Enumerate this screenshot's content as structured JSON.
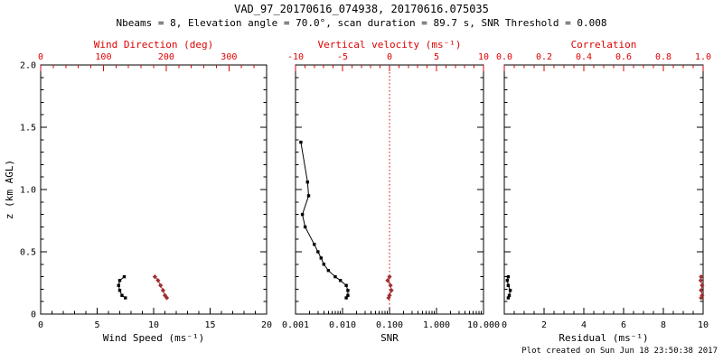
{
  "header": {
    "title": "VAD_97_20170616_074938, 20170616.075035",
    "subtitle": "Nbeams = 8, Elevation angle = 70.0°, scan duration = 89.7 s, SNR Threshold = 0.008"
  },
  "footer": {
    "created": "Plot created on Sun Jun 18 23:50:38 2017"
  },
  "colors": {
    "axis": "#000000",
    "secondary": "#dd0000",
    "marker_red": "#a03030",
    "background": "#ffffff"
  },
  "chart_data": [
    {
      "type": "scatter",
      "name": "wind-panel",
      "x_bottom": {
        "label": "Wind Speed (ms⁻¹)",
        "min": 0,
        "max": 20,
        "ticks": [
          0,
          5,
          10,
          15,
          20
        ],
        "tick_labels": [
          "0",
          "5",
          "10",
          "15",
          "20"
        ],
        "minor_divs": 5,
        "color": "#000000"
      },
      "x_top": {
        "label": "Wind Direction (deg)",
        "min": 0,
        "max": 360,
        "ticks": [
          0,
          100,
          200,
          300
        ],
        "tick_labels": [
          "0",
          "100",
          "200",
          "300"
        ],
        "minor_divs": 5,
        "color": "#dd0000"
      },
      "y": {
        "label": "z (km AGL)",
        "min": 0,
        "max": 2,
        "ticks": [
          0,
          0.5,
          1,
          1.5,
          2
        ],
        "tick_labels": [
          "0",
          "0.5",
          "1.0",
          "1.5",
          "2.0"
        ],
        "minor_divs": 5,
        "show_labels": true
      },
      "series": [
        {
          "name": "wind-speed",
          "axis": "bottom",
          "color": "#000000",
          "marker": "square",
          "points": [
            [
              7.4,
              0.3
            ],
            [
              7.0,
              0.27
            ],
            [
              6.9,
              0.23
            ],
            [
              7.0,
              0.19
            ],
            [
              7.2,
              0.15
            ],
            [
              7.5,
              0.13
            ]
          ]
        },
        {
          "name": "wind-direction",
          "axis": "top",
          "color": "#a03030",
          "marker": "diamond",
          "points": [
            [
              182,
              0.3
            ],
            [
              187,
              0.27
            ],
            [
              191,
              0.23
            ],
            [
              195,
              0.19
            ],
            [
              198,
              0.15
            ],
            [
              201,
              0.13
            ]
          ]
        }
      ]
    },
    {
      "type": "scatter",
      "name": "snr-panel",
      "x_bottom": {
        "label": "SNR",
        "min": 0.001,
        "max": 10,
        "scale": "log",
        "ticks": [
          0.001,
          0.01,
          0.1,
          1,
          10
        ],
        "tick_labels": [
          "0.001",
          "0.010",
          "0.100",
          "1.000",
          "10.000"
        ],
        "color": "#000000"
      },
      "x_top": {
        "label": "Vertical velocity (ms⁻¹)",
        "min": -10,
        "max": 10,
        "ticks": [
          -10,
          -5,
          0,
          5,
          10
        ],
        "tick_labels": [
          "-10",
          "-5",
          "0",
          "5",
          "10"
        ],
        "minor_divs": 5,
        "color": "#dd0000"
      },
      "y": {
        "label": "",
        "min": 0,
        "max": 2,
        "ticks": [
          0,
          0.5,
          1,
          1.5,
          2
        ],
        "tick_labels": [
          "0",
          "0.5",
          "1.0",
          "1.5",
          "2.0"
        ],
        "minor_divs": 5,
        "show_labels": false
      },
      "ref_lines": [
        {
          "axis": "top",
          "value": 0,
          "color": "#dd0000",
          "style": "dotted"
        }
      ],
      "series": [
        {
          "name": "snr",
          "axis": "bottom",
          "color": "#000000",
          "marker": "square",
          "points": [
            [
              0.0013,
              1.38
            ],
            [
              0.0018,
              1.06
            ],
            [
              0.0019,
              0.95
            ],
            [
              0.0014,
              0.8
            ],
            [
              0.0016,
              0.7
            ],
            [
              0.0025,
              0.56
            ],
            [
              0.003,
              0.5
            ],
            [
              0.0035,
              0.45
            ],
            [
              0.004,
              0.4
            ],
            [
              0.005,
              0.35
            ],
            [
              0.007,
              0.3
            ],
            [
              0.009,
              0.27
            ],
            [
              0.012,
              0.23
            ],
            [
              0.013,
              0.19
            ],
            [
              0.013,
              0.15
            ],
            [
              0.012,
              0.13
            ]
          ]
        },
        {
          "name": "vertical-velocity",
          "axis": "top",
          "color": "#a03030",
          "marker": "diamond",
          "points": [
            [
              0.0,
              0.3
            ],
            [
              -0.2,
              0.27
            ],
            [
              0.1,
              0.23
            ],
            [
              0.2,
              0.19
            ],
            [
              0.0,
              0.15
            ],
            [
              -0.1,
              0.13
            ]
          ]
        }
      ]
    },
    {
      "type": "scatter",
      "name": "residual-panel",
      "x_bottom": {
        "label": "Residual (ms⁻¹)",
        "min": 0,
        "max": 10,
        "ticks": [
          0,
          2,
          4,
          6,
          8,
          10
        ],
        "tick_labels": [
          "0",
          "2",
          "4",
          "6",
          "8",
          "10"
        ],
        "minor_divs": 4,
        "color": "#000000"
      },
      "x_top": {
        "label": "Correlation",
        "min": 0,
        "max": 1,
        "ticks": [
          0,
          0.2,
          0.4,
          0.6,
          0.8,
          1.0
        ],
        "tick_labels": [
          "0.0",
          "0.2",
          "0.4",
          "0.6",
          "0.8",
          "1.0"
        ],
        "minor_divs": 4,
        "color": "#dd0000"
      },
      "y": {
        "label": "",
        "min": 0,
        "max": 2,
        "ticks": [
          0,
          0.5,
          1,
          1.5,
          2
        ],
        "tick_labels": [
          "0",
          "0.5",
          "1.0",
          "1.5",
          "2.0"
        ],
        "minor_divs": 5,
        "show_labels": false
      },
      "series": [
        {
          "name": "residual",
          "axis": "bottom",
          "color": "#000000",
          "marker": "square",
          "points": [
            [
              0.2,
              0.3
            ],
            [
              0.15,
              0.27
            ],
            [
              0.2,
              0.23
            ],
            [
              0.3,
              0.19
            ],
            [
              0.25,
              0.15
            ],
            [
              0.2,
              0.13
            ]
          ]
        },
        {
          "name": "correlation",
          "axis": "top",
          "color": "#a03030",
          "marker": "diamond",
          "points": [
            [
              0.99,
              0.3
            ],
            [
              0.988,
              0.27
            ],
            [
              0.995,
              0.23
            ],
            [
              0.99,
              0.19
            ],
            [
              0.995,
              0.15
            ],
            [
              0.99,
              0.13
            ]
          ]
        }
      ]
    }
  ]
}
